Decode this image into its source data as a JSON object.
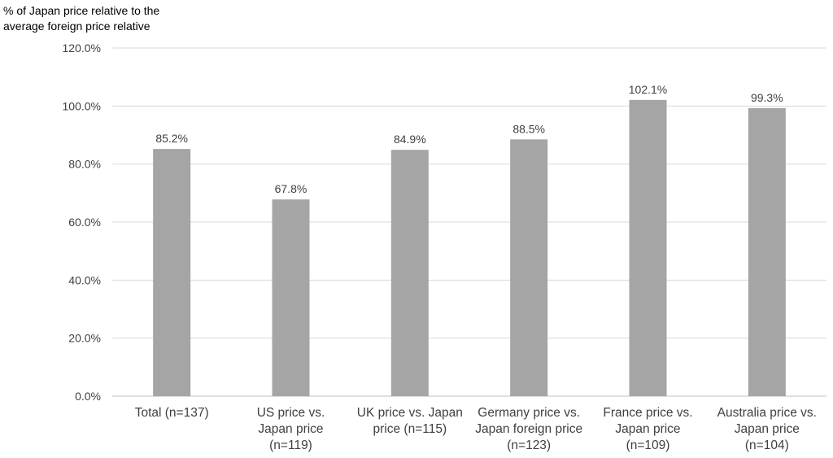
{
  "chart_data": {
    "type": "bar",
    "title": "",
    "ylabel": "% of Japan price relative to the\naverage foreign price relative",
    "xlabel": "",
    "categories": [
      [
        "Total (n=137)"
      ],
      [
        "US price vs.",
        "Japan price",
        "(n=119)"
      ],
      [
        "UK price vs. Japan",
        "price (n=115)"
      ],
      [
        "Germany price vs.",
        "Japan foreign price",
        "(n=123)"
      ],
      [
        "France price vs.",
        "Japan price",
        "(n=109)"
      ],
      [
        "Australia price vs.",
        "Japan price",
        "(n=104)"
      ]
    ],
    "values": [
      85.2,
      67.8,
      84.9,
      88.5,
      102.1,
      99.3
    ],
    "data_labels": [
      "85.2%",
      "67.8%",
      "84.9%",
      "88.5%",
      "102.1%",
      "99.3%"
    ],
    "ylim": [
      0,
      120
    ],
    "yticks": [
      0,
      20,
      40,
      60,
      80,
      100,
      120
    ],
    "ytick_labels": [
      "0.0%",
      "20.0%",
      "40.0%",
      "60.0%",
      "80.0%",
      "100.0%",
      "120.0%"
    ],
    "grid": true,
    "legend": "none",
    "colors": {
      "bar": "#a5a5a5",
      "grid": "#d9d9d9",
      "axis": "#bfbfbf",
      "text": "#404040"
    }
  }
}
